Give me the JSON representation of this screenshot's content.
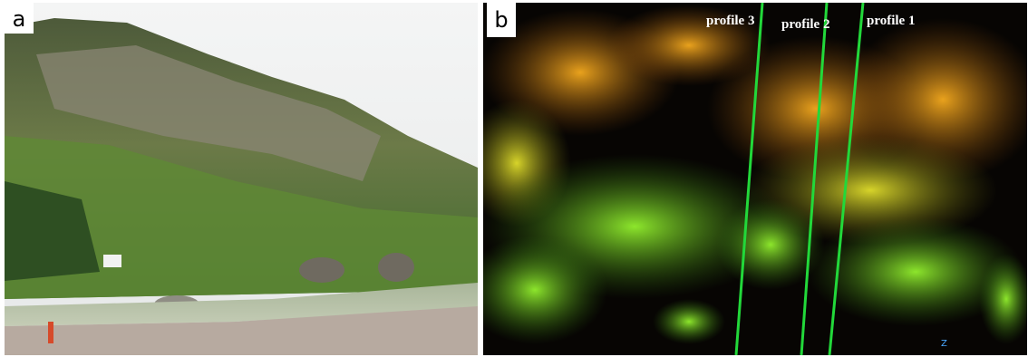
{
  "panels": [
    {
      "label": "a"
    },
    {
      "label": "b",
      "profiles": [
        "profile 3",
        "profile 2",
        "profile 1"
      ],
      "axis_label": "Z"
    }
  ]
}
